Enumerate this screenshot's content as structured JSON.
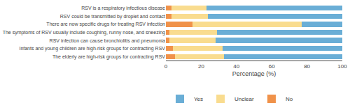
{
  "chart_data": {
    "type": "bar",
    "orientation": "horizontal",
    "stacked": true,
    "categories": [
      "RSV is a respiratory infectious disease",
      "RSV could be transmitted by droplet and contact",
      "There are now specific drugs for treating RSV infection",
      "The symptoms of RSV usually include coughing, runny nose, and sneezing",
      "RSV infection can cause bronchiolitis and pneumonia",
      "Infants and young children are high-risk groups for contracting RSV",
      "The elderly are high-risk groups for contracting RSV"
    ],
    "series": [
      {
        "name": "No",
        "color": "#F0924A",
        "values": [
          3,
          3,
          15,
          2,
          2,
          4,
          5
        ]
      },
      {
        "name": "Unclear",
        "color": "#F9DC8F",
        "values": [
          20,
          21,
          62,
          27,
          26,
          28,
          28
        ]
      },
      {
        "name": "Yes",
        "color": "#6AAED6",
        "values": [
          77,
          76,
          23,
          71,
          72,
          68,
          67
        ]
      }
    ],
    "xlabel": "Percentage (%)",
    "xlim": [
      0,
      100
    ],
    "xticks": [
      0,
      20,
      40,
      60,
      80,
      100
    ],
    "grid": false,
    "legend": "bottom"
  }
}
